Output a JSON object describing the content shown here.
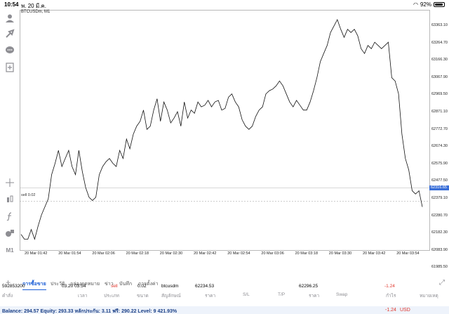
{
  "status_bar": {
    "time": "10:54",
    "date": "พ. 20 มี.ค.",
    "battery": "92%",
    "battery_fraction": 0.92
  },
  "chart": {
    "symbol_label": "BTCUSDm, M1",
    "sell_line_label": "sell 0.02",
    "current_price_tag": "62316.65",
    "y_labels": [
      "63363.10",
      "63264.70",
      "63166.30",
      "63067.90",
      "62969.50",
      "62871.10",
      "62772.70",
      "62674.30",
      "62575.90",
      "62477.50",
      "62379.10",
      "62280.70",
      "62182.30",
      "62083.90",
      "61985.50"
    ],
    "x_labels": [
      "20 Mar 01:42",
      "20 Mar 01:54",
      "20 Mar 02:06",
      "20 Mar 02:18",
      "20 Mar 02:30",
      "20 Mar 02:42",
      "20 Mar 02:54",
      "20 Mar 03:06",
      "20 Mar 03:18",
      "20 Mar 03:30",
      "20 Mar 03:42",
      "20 Mar 03:54"
    ]
  },
  "chart_data": {
    "type": "line",
    "title": "BTCUSDm, M1",
    "ylim": [
      61937,
      63412
    ],
    "sell_level": 62234.53,
    "values": [
      62030,
      62000,
      62000,
      62060,
      62000,
      62080,
      62150,
      62200,
      62250,
      62400,
      62470,
      62550,
      62450,
      62500,
      62550,
      62450,
      62400,
      62550,
      62420,
      62320,
      62260,
      62240,
      62260,
      62400,
      62450,
      62480,
      62500,
      62470,
      62450,
      62550,
      62500,
      62620,
      62560,
      62650,
      62700,
      62730,
      62800,
      62680,
      62700,
      62800,
      62870,
      62730,
      62850,
      62800,
      62720,
      62750,
      62790,
      62700,
      62850,
      62750,
      62800,
      62780,
      62850,
      62820,
      62830,
      62860,
      62820,
      62850,
      62860,
      62800,
      62810,
      62880,
      62900,
      62850,
      62820,
      62740,
      62700,
      62680,
      62700,
      62760,
      62800,
      62820,
      62900,
      62920,
      62930,
      62950,
      62980,
      62950,
      62900,
      62850,
      62820,
      62860,
      62830,
      62800,
      62800,
      62850,
      62920,
      63000,
      63100,
      63150,
      63200,
      63280,
      63320,
      63360,
      63300,
      63250,
      63300,
      63280,
      63300,
      63260,
      63180,
      63150,
      63200,
      63180,
      63220,
      63200,
      63180,
      63200,
      63220,
      63000,
      62980,
      62900,
      62650,
      62500,
      62430,
      62300,
      62280,
      62300,
      62200
    ]
  },
  "left_toolbar": {
    "timeframe": "M1",
    "icons": [
      "profile-icon",
      "add-trade-icon",
      "chat-icon",
      "new-order-icon",
      "crosshair-icon",
      "indicators-icon",
      "formula-icon",
      "objects-icon"
    ]
  },
  "tabs": {
    "items": [
      "การซื้อขาย",
      "ประวัติ",
      "กล่องจดหมาย",
      "ข่าว",
      "บันทึก",
      "การตั้งค่า"
    ],
    "active": "การซื้อขาย"
  },
  "table": {
    "headers": [
      "คำสั่ง",
      "เวลา",
      "ประเภท",
      "ขนาด",
      "สัญลักษณ์",
      "ราคา",
      "S/L",
      "T/P",
      "ราคา",
      "Swap",
      "กำไร",
      "หมายเหตุ"
    ],
    "row": {
      "order": "592853200",
      "time": "03.20 03:54",
      "type": "sell",
      "volume": "0.02",
      "symbol": "btcusdm",
      "open_price": "62234.53",
      "sl": "",
      "tp": "",
      "price": "62296.25",
      "swap": "",
      "profit": "-1.24",
      "comment": ""
    }
  },
  "footer": {
    "balance_text": "Balance: 294.57 Equity: 293.33 หลักประกัน: 3.11 ฟรี: 290.22 Level: 9 421.93%",
    "profit": "-1.24",
    "currency": "USD"
  },
  "colors": {
    "accent": "#1a5dd6",
    "loss": "#e0362c",
    "price_tag": "#3a6fd8"
  }
}
